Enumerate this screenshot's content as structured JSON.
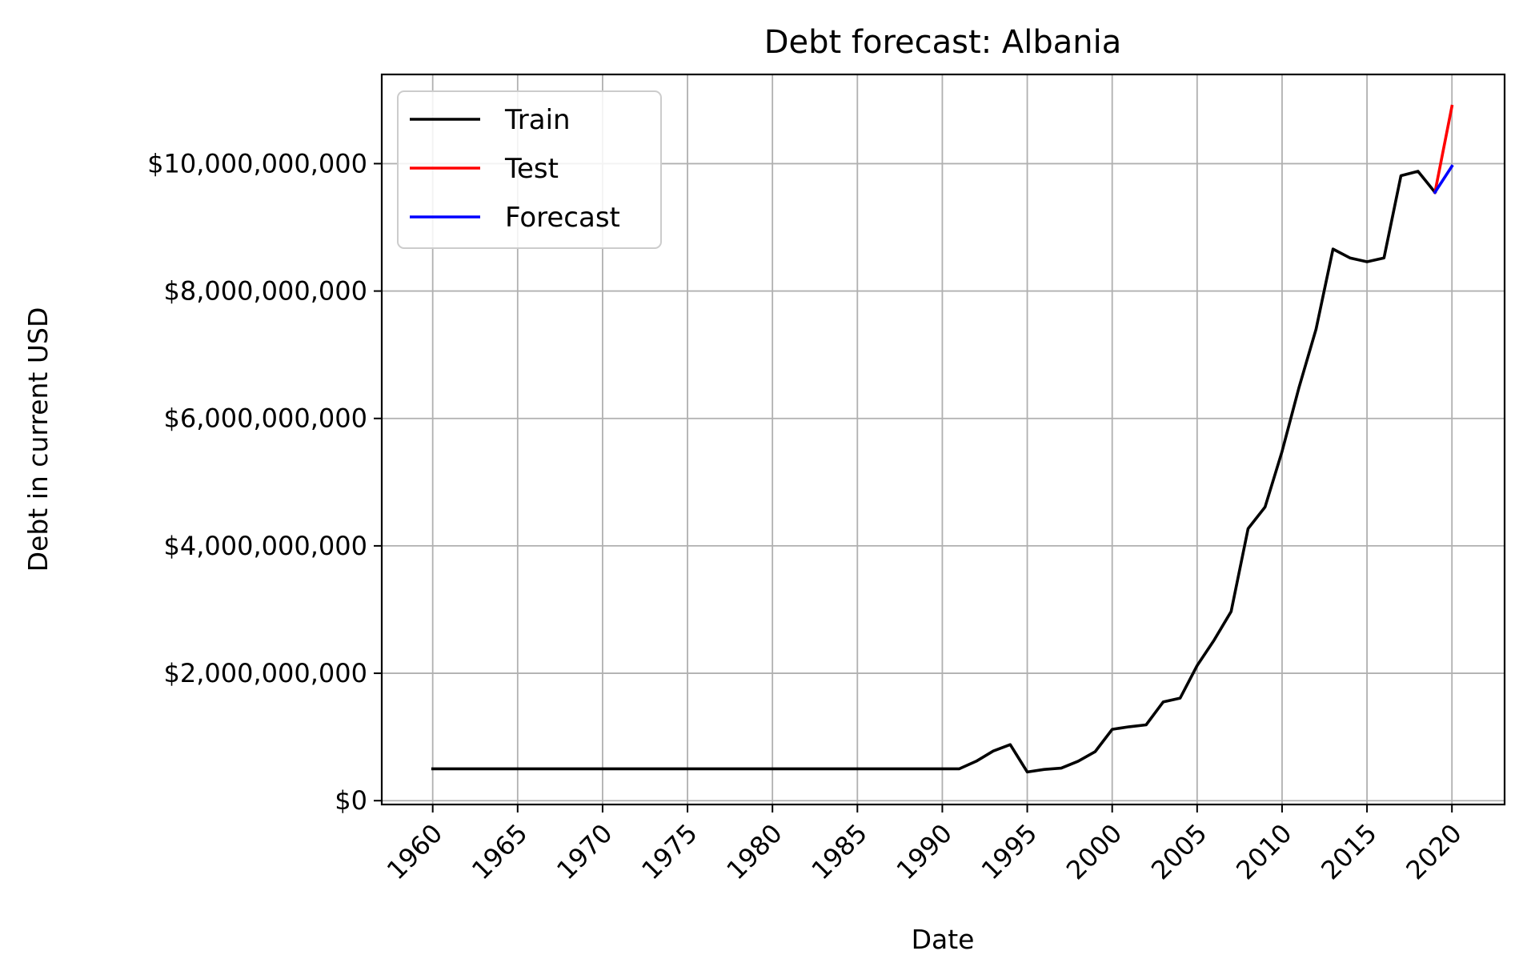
{
  "chart_data": {
    "type": "line",
    "title": "Debt forecast: Albania",
    "xlabel": "Date",
    "ylabel": "Debt in current USD",
    "xlim": [
      1957,
      2023.1
    ],
    "ylim": [
      -60000000,
      11400000000
    ],
    "xticks": [
      1960,
      1965,
      1970,
      1975,
      1980,
      1985,
      1990,
      1995,
      2000,
      2005,
      2010,
      2015,
      2020
    ],
    "xtick_labels": [
      "1960",
      "1965",
      "1970",
      "1975",
      "1980",
      "1985",
      "1990",
      "1995",
      "2000",
      "2005",
      "2010",
      "2015",
      "2020"
    ],
    "yticks": [
      0,
      2000000000,
      4000000000,
      6000000000,
      8000000000,
      10000000000
    ],
    "ytick_labels": [
      "$0",
      "$2,000,000,000",
      "$4,000,000,000",
      "$6,000,000,000",
      "$8,000,000,000",
      "$10,000,000,000"
    ],
    "grid": true,
    "legend_position": "top-left",
    "series": [
      {
        "name": "Train",
        "color": "#000000",
        "x": [
          1960,
          1961,
          1962,
          1963,
          1964,
          1965,
          1966,
          1967,
          1968,
          1969,
          1970,
          1971,
          1972,
          1973,
          1974,
          1975,
          1976,
          1977,
          1978,
          1979,
          1980,
          1981,
          1982,
          1983,
          1984,
          1985,
          1986,
          1987,
          1988,
          1989,
          1990,
          1991,
          1992,
          1993,
          1994,
          1995,
          1996,
          1997,
          1998,
          1999,
          2000,
          2001,
          2002,
          2003,
          2004,
          2005,
          2006,
          2007,
          2008,
          2009,
          2010,
          2011,
          2012,
          2013,
          2014,
          2015,
          2016,
          2017,
          2018,
          2019
        ],
        "values": [
          500000000,
          500000000,
          500000000,
          500000000,
          500000000,
          500000000,
          500000000,
          500000000,
          500000000,
          500000000,
          500000000,
          500000000,
          500000000,
          500000000,
          500000000,
          500000000,
          500000000,
          500000000,
          500000000,
          500000000,
          500000000,
          500000000,
          500000000,
          500000000,
          500000000,
          500000000,
          500000000,
          500000000,
          500000000,
          500000000,
          500000000,
          500000000,
          620000000,
          780000000,
          880000000,
          450000000,
          490000000,
          510000000,
          620000000,
          770000000,
          1120000000,
          1160000000,
          1190000000,
          1550000000,
          1610000000,
          2120000000,
          2520000000,
          2970000000,
          4270000000,
          4610000000,
          5480000000,
          6490000000,
          7400000000,
          8660000000,
          8520000000,
          8460000000,
          8520000000,
          9810000000,
          9880000000,
          9550000000
        ]
      },
      {
        "name": "Test",
        "color": "#ff0000",
        "x": [
          2019,
          2020
        ],
        "values": [
          9550000000,
          10900000000
        ]
      },
      {
        "name": "Forecast",
        "color": "#0000ff",
        "x": [
          2019,
          2020
        ],
        "values": [
          9550000000,
          9960000000
        ]
      }
    ]
  }
}
